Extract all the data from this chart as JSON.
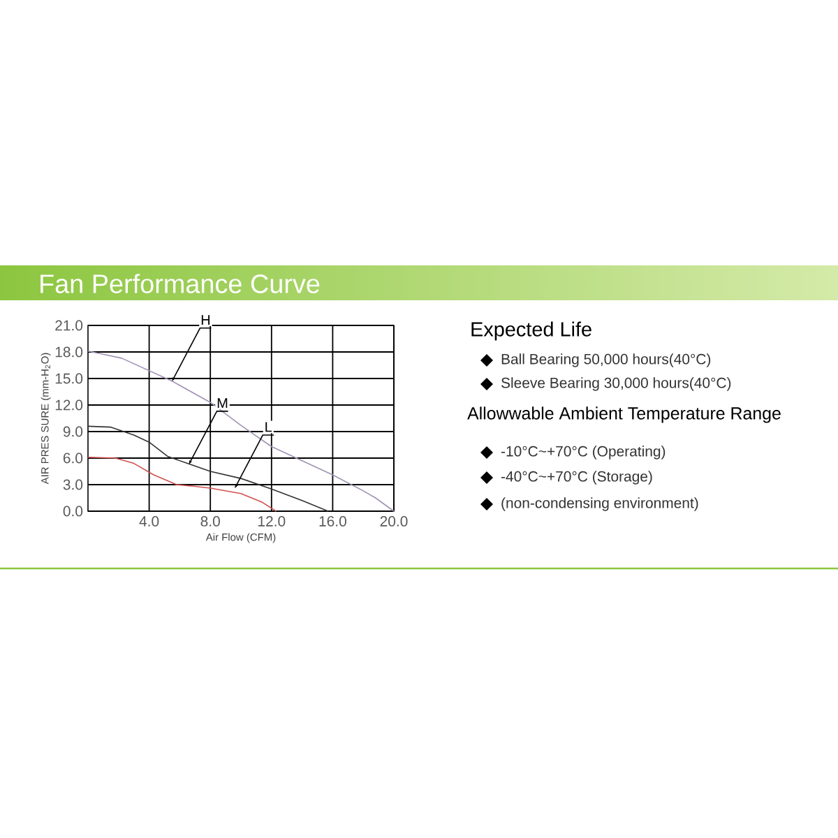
{
  "chart_data": [
    {
      "type": "line",
      "title": "Fan Performance Curve",
      "xlabel": "Air Flow (CFM)",
      "ylabel": "AIR PRES SURE (mm-H$_{2}$O)",
      "xlim": [
        0,
        20
      ],
      "ylim": [
        0,
        21
      ],
      "xticks": [
        {
          "value": 4,
          "label": "4.0"
        },
        {
          "value": 8,
          "label": "8.0"
        },
        {
          "value": 12,
          "label": "12.0"
        },
        {
          "value": 16,
          "label": "16.0"
        },
        {
          "value": 20,
          "label": "20.0"
        }
      ],
      "yticks": [
        {
          "value": 0,
          "label": "0.0"
        },
        {
          "value": 3,
          "label": "3.0"
        },
        {
          "value": 6,
          "label": "6.0"
        },
        {
          "value": 9,
          "label": "9.0"
        },
        {
          "value": 12,
          "label": "12.0"
        },
        {
          "value": 15,
          "label": "15.0"
        },
        {
          "value": 18,
          "label": "18.0"
        },
        {
          "value": 21,
          "label": "21.0"
        }
      ],
      "grid": true,
      "series": [
        {
          "color": "#a093b4",
          "x": [
            0,
            2.2,
            5.5,
            8,
            10,
            12,
            14,
            16,
            18,
            18.8,
            20
          ],
          "values": [
            18.1,
            17.3,
            14.7,
            12.3,
            9.7,
            7.3,
            5.7,
            4.1,
            2.3,
            1.5,
            0
          ]
        },
        {
          "color": "#333333",
          "x": [
            0,
            1.5,
            3,
            4,
            5.2,
            6.5,
            8,
            10,
            12,
            14,
            15.7
          ],
          "values": [
            9.6,
            9.5,
            8.6,
            7.8,
            6.2,
            5.4,
            4.5,
            3.7,
            2.5,
            1.2,
            0
          ]
        },
        {
          "color": "#d05050",
          "x": [
            0,
            1.8,
            3,
            4.3,
            5.8,
            7,
            8,
            10,
            11.4,
            12.3
          ],
          "values": [
            6.1,
            6.0,
            5.4,
            4.1,
            3.0,
            2.8,
            2.6,
            2.0,
            1.0,
            0
          ]
        }
      ],
      "annotations": [
        {
          "text": "H",
          "x": 5.5,
          "y": 14.7
        },
        {
          "text": "M",
          "x": 6.6,
          "y": 5.3
        },
        {
          "text": "L",
          "x": 9.6,
          "y": 2.6
        }
      ]
    },
    {
      "type": "other",
      "title": "Expected Life",
      "annotations": [
        "Ball Bearing 50,000 hours(40°C)",
        "Sleeve Bearing 30,000 hours(40°C)",
        "Allowwable Ambient Temperature Range",
        "-10°C~+70°C (Operating)",
        "-40°C~+70°C (Storage)",
        "(non-condensing environment)"
      ]
    }
  ]
}
